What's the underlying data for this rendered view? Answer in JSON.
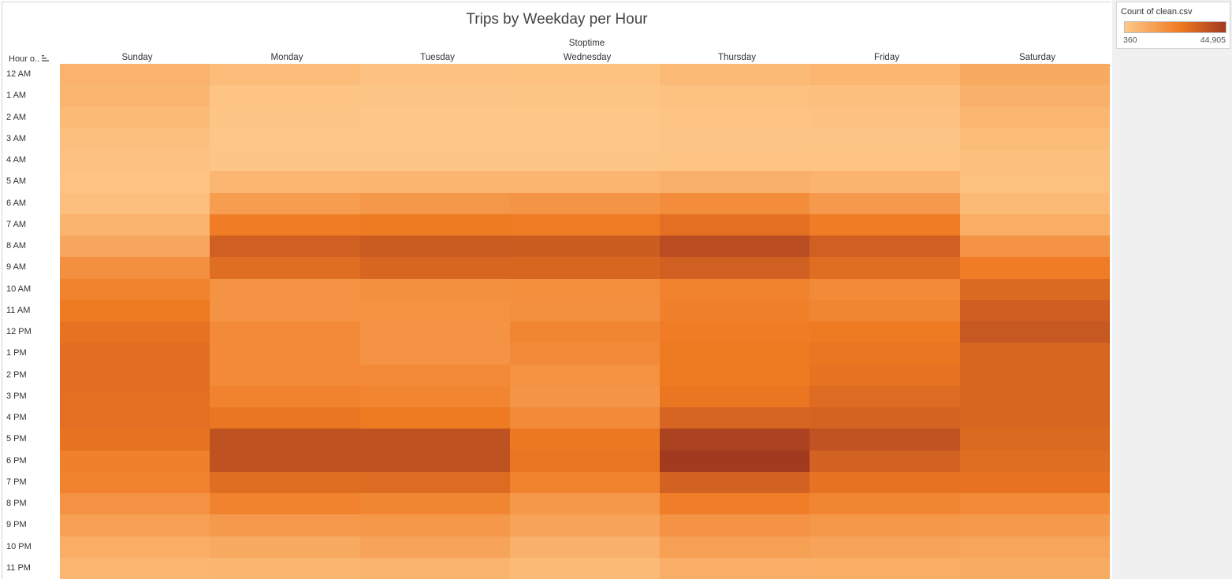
{
  "title": "Trips by Weekday per Hour",
  "legend": {
    "title": "Count of clean.csv",
    "min_label": "360",
    "max_label": "44,905",
    "color_low": "#fec98a",
    "color_mid": "#ef7a22",
    "color_high": "#a23a20"
  },
  "chart_data": {
    "type": "heatmap",
    "title": "Trips by Weekday per Hour",
    "column_dimension": "Stoptime",
    "row_dimension": "Hour o..",
    "x": [
      "Sunday",
      "Monday",
      "Tuesday",
      "Wednesday",
      "Thursday",
      "Friday",
      "Saturday"
    ],
    "y": [
      "12 AM",
      "1 AM",
      "2 AM",
      "3 AM",
      "4 AM",
      "5 AM",
      "6 AM",
      "7 AM",
      "8 AM",
      "9 AM",
      "10 AM",
      "11 AM",
      "12 PM",
      "1 PM",
      "2 PM",
      "3 PM",
      "4 PM",
      "5 PM",
      "6 PM",
      "7 PM",
      "8 PM",
      "9 PM",
      "10 PM",
      "11 PM"
    ],
    "values": [
      [
        7500,
        4000,
        2500,
        2800,
        5000,
        6000,
        10000
      ],
      [
        6500,
        1800,
        1500,
        1700,
        3000,
        3500,
        8000
      ],
      [
        5000,
        1200,
        1000,
        1100,
        2000,
        2500,
        6000
      ],
      [
        3500,
        1000,
        900,
        950,
        1500,
        1600,
        4500
      ],
      [
        2500,
        1300,
        1200,
        1300,
        1800,
        1900,
        3500
      ],
      [
        2000,
        6000,
        6200,
        6500,
        8000,
        6800,
        3000
      ],
      [
        3500,
        14000,
        16000,
        16500,
        19000,
        15000,
        5000
      ],
      [
        7000,
        24000,
        25000,
        24500,
        28000,
        24000,
        9000
      ],
      [
        11000,
        33000,
        34500,
        34000,
        39000,
        33000,
        17000
      ],
      [
        18000,
        29000,
        31000,
        31000,
        33000,
        29000,
        24000
      ],
      [
        22000,
        17000,
        18000,
        18500,
        22000,
        20000,
        30000
      ],
      [
        25000,
        17000,
        17500,
        18000,
        23000,
        21000,
        33500
      ],
      [
        27000,
        20000,
        17000,
        21000,
        24000,
        25000,
        35500
      ],
      [
        28500,
        20000,
        17000,
        19500,
        25000,
        26000,
        31000
      ],
      [
        28500,
        20000,
        20000,
        17500,
        25000,
        27000,
        31000
      ],
      [
        28000,
        22000,
        21500,
        16500,
        26000,
        29500,
        31000
      ],
      [
        28000,
        26000,
        25000,
        19500,
        31500,
        32000,
        31000
      ],
      [
        27000,
        37500,
        37500,
        25500,
        42500,
        37000,
        30000
      ],
      [
        23000,
        37500,
        37500,
        26000,
        44905,
        32500,
        29000
      ],
      [
        22000,
        29000,
        29500,
        22000,
        32500,
        27000,
        27000
      ],
      [
        17000,
        22000,
        21000,
        15500,
        23500,
        21000,
        20000
      ],
      [
        13000,
        15000,
        15500,
        12000,
        17000,
        16000,
        15000
      ],
      [
        9000,
        10000,
        12000,
        8000,
        13000,
        12000,
        11500
      ],
      [
        6000,
        6500,
        7000,
        5000,
        8500,
        9000,
        9500
      ]
    ],
    "value_range": [
      360,
      44905
    ]
  }
}
